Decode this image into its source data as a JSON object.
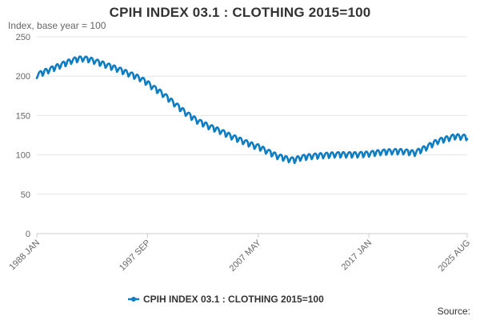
{
  "chart_data": {
    "type": "line",
    "title": "CPIH INDEX 03.1 : CLOTHING 2015=100",
    "ylabel": "Index, base year = 100",
    "xlabel": "",
    "ylim": [
      0,
      250
    ],
    "y_ticks": [
      0,
      50,
      100,
      150,
      200,
      250
    ],
    "x_range": [
      "1988-01",
      "2025-08"
    ],
    "x_tick_labels": [
      "1988 JAN",
      "1997 SEP",
      "2007 MAY",
      "2017 JAN",
      "2025 AUG"
    ],
    "x_tick_dates": [
      "1988-01",
      "1997-09",
      "2007-05",
      "2017-01",
      "2025-08"
    ],
    "grid": "horizontal",
    "legend": "bottom",
    "series": [
      {
        "name": "CPIH INDEX 03.1 : CLOTHING 2015=100",
        "color": "#0f7dc2",
        "seasonal_amplitude": 3.5,
        "points": [
          [
            "1988-01",
            201
          ],
          [
            "1989-01",
            207
          ],
          [
            "1990-01",
            213
          ],
          [
            "1991-01",
            219
          ],
          [
            "1991-07",
            221
          ],
          [
            "1992-01",
            222
          ],
          [
            "1992-07",
            221
          ],
          [
            "1993-01",
            219
          ],
          [
            "1994-01",
            214
          ],
          [
            "1995-01",
            209
          ],
          [
            "1996-01",
            203
          ],
          [
            "1997-01",
            197
          ],
          [
            "1997-09",
            191
          ],
          [
            "1998-01",
            187
          ],
          [
            "1999-01",
            177
          ],
          [
            "2000-01",
            165
          ],
          [
            "2001-01",
            153
          ],
          [
            "2002-01",
            143
          ],
          [
            "2003-01",
            136
          ],
          [
            "2004-01",
            130
          ],
          [
            "2005-01",
            123
          ],
          [
            "2006-01",
            117
          ],
          [
            "2007-01",
            111
          ],
          [
            "2007-05",
            110
          ],
          [
            "2008-01",
            105
          ],
          [
            "2009-01",
            98
          ],
          [
            "2010-01",
            94
          ],
          [
            "2010-07",
            93
          ],
          [
            "2011-01",
            96
          ],
          [
            "2012-01",
            98
          ],
          [
            "2013-01",
            99
          ],
          [
            "2014-01",
            100
          ],
          [
            "2015-01",
            100
          ],
          [
            "2016-01",
            100
          ],
          [
            "2017-01",
            101
          ],
          [
            "2018-01",
            103
          ],
          [
            "2019-01",
            104
          ],
          [
            "2020-01",
            104
          ],
          [
            "2020-07",
            103
          ],
          [
            "2021-01",
            102
          ],
          [
            "2022-01",
            109
          ],
          [
            "2023-01",
            117
          ],
          [
            "2024-01",
            121
          ],
          [
            "2024-07",
            123
          ],
          [
            "2025-08",
            122
          ]
        ]
      }
    ],
    "source_label": "Source:"
  }
}
